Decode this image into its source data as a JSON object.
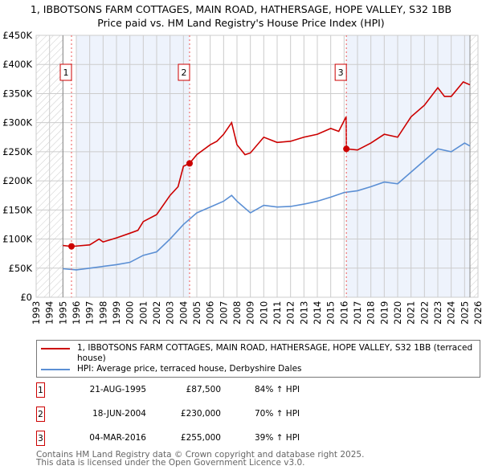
{
  "title": "1, IBBOTSONS FARM COTTAGES, MAIN ROAD, HATHERSAGE, HOPE VALLEY, S32 1BB",
  "subtitle": "Price paid vs. HM Land Registry's House Price Index (HPI)",
  "colors": {
    "property": "#cc0000",
    "hpi": "#5b8fd4",
    "shade": "#eef3fc"
  },
  "chart_data": {
    "type": "line",
    "xlim": [
      1993,
      2026
    ],
    "ylim": [
      0,
      450000
    ],
    "x_ticks": [
      "1993",
      "1994",
      "1995",
      "1996",
      "1997",
      "1998",
      "1999",
      "2000",
      "2001",
      "2002",
      "2003",
      "2004",
      "2005",
      "2006",
      "2007",
      "2008",
      "2009",
      "2010",
      "2011",
      "2012",
      "2013",
      "2014",
      "2015",
      "2016",
      "2017",
      "2018",
      "2019",
      "2020",
      "2021",
      "2022",
      "2023",
      "2024",
      "2025",
      "2026"
    ],
    "y_ticks": [
      {
        "v": 0,
        "label": "£0"
      },
      {
        "v": 50000,
        "label": "£50K"
      },
      {
        "v": 100000,
        "label": "£100K"
      },
      {
        "v": 150000,
        "label": "£150K"
      },
      {
        "v": 200000,
        "label": "£200K"
      },
      {
        "v": 250000,
        "label": "£250K"
      },
      {
        "v": 300000,
        "label": "£300K"
      },
      {
        "v": 350000,
        "label": "£350K"
      },
      {
        "v": 400000,
        "label": "£400K"
      },
      {
        "v": 450000,
        "label": "£450K"
      }
    ],
    "grid": true,
    "data_range": [
      1995,
      2025.4
    ],
    "shaded_periods": [
      [
        1996,
        2004.46
      ],
      [
        2016.17,
        2025.4
      ]
    ],
    "series": [
      {
        "name": "1, IBBOTSONS FARM COTTAGES, MAIN ROAD, HATHERSAGE, HOPE VALLEY, S32 1BB (terraced house)",
        "x": [
          1995,
          1995.6,
          1996,
          1997,
          1997.7,
          1998,
          1999,
          2000,
          2000.6,
          2001,
          2002,
          2003,
          2003.6,
          2004,
          2004.46,
          2005,
          2006,
          2006.5,
          2007,
          2007.6,
          2008,
          2008.6,
          2009,
          2010,
          2011,
          2012,
          2013,
          2014,
          2015,
          2015.6,
          2016.15,
          2016.17,
          2017,
          2018,
          2019,
          2020,
          2021,
          2022,
          2023,
          2023.5,
          2024,
          2024.9,
          2025.4
        ],
        "y": [
          89000,
          87500,
          88000,
          90000,
          100000,
          95000,
          102000,
          110000,
          115000,
          130000,
          142000,
          175000,
          190000,
          225000,
          230000,
          245000,
          262000,
          268000,
          280000,
          300000,
          262000,
          245000,
          248000,
          275000,
          266000,
          268000,
          275000,
          280000,
          290000,
          285000,
          310000,
          255000,
          253000,
          265000,
          280000,
          275000,
          310000,
          330000,
          360000,
          345000,
          345000,
          370000,
          365000
        ]
      },
      {
        "name": "HPI: Average price, terraced house, Derbyshire Dales",
        "x": [
          1995,
          1996,
          1997,
          1998,
          1999,
          2000,
          2001,
          2002,
          2003,
          2004,
          2005,
          2006,
          2007,
          2007.6,
          2008,
          2009,
          2010,
          2011,
          2012,
          2013,
          2014,
          2015,
          2016,
          2017,
          2018,
          2019,
          2020,
          2021,
          2022,
          2023,
          2024,
          2025,
          2025.4
        ],
        "y": [
          49000,
          47000,
          50000,
          53000,
          56000,
          60000,
          72000,
          78000,
          100000,
          125000,
          145000,
          155000,
          165000,
          175000,
          165000,
          145000,
          158000,
          155000,
          156000,
          160000,
          165000,
          172000,
          180000,
          183000,
          190000,
          198000,
          195000,
          215000,
          235000,
          255000,
          250000,
          265000,
          260000
        ]
      }
    ],
    "sales": [
      {
        "label": "1",
        "x": 1995.64,
        "y": 87500
      },
      {
        "label": "2",
        "x": 2004.46,
        "y": 230000
      },
      {
        "label": "3",
        "x": 2016.17,
        "y": 255000
      }
    ]
  },
  "legend": {
    "property": "1, IBBOTSONS FARM COTTAGES, MAIN ROAD, HATHERSAGE, HOPE VALLEY, S32 1BB (terraced house)",
    "hpi": "HPI: Average price, terraced house, Derbyshire Dales"
  },
  "transactions": [
    {
      "num": "1",
      "date": "21-AUG-1995",
      "price": "£87,500",
      "hpi": "84% ↑ HPI"
    },
    {
      "num": "2",
      "date": "18-JUN-2004",
      "price": "£230,000",
      "hpi": "70% ↑ HPI"
    },
    {
      "num": "3",
      "date": "04-MAR-2016",
      "price": "£255,000",
      "hpi": "39% ↑ HPI"
    }
  ],
  "footer": {
    "line1": "Contains HM Land Registry data © Crown copyright and database right 2025.",
    "line2": "This data is licensed under the Open Government Licence v3.0."
  }
}
